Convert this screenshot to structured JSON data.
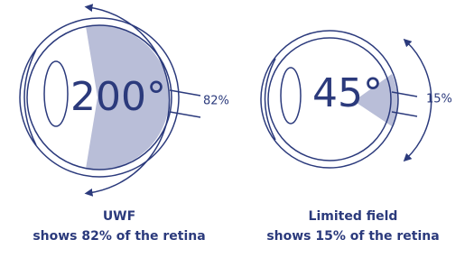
{
  "panels": [
    {
      "angle": "200°",
      "percent": "82%",
      "title": "UWF",
      "caption": "shows 82% of the retina"
    },
    {
      "angle": "45°",
      "percent": "15%",
      "title": "Limited field",
      "caption": "shows 15% of the retina"
    }
  ]
}
